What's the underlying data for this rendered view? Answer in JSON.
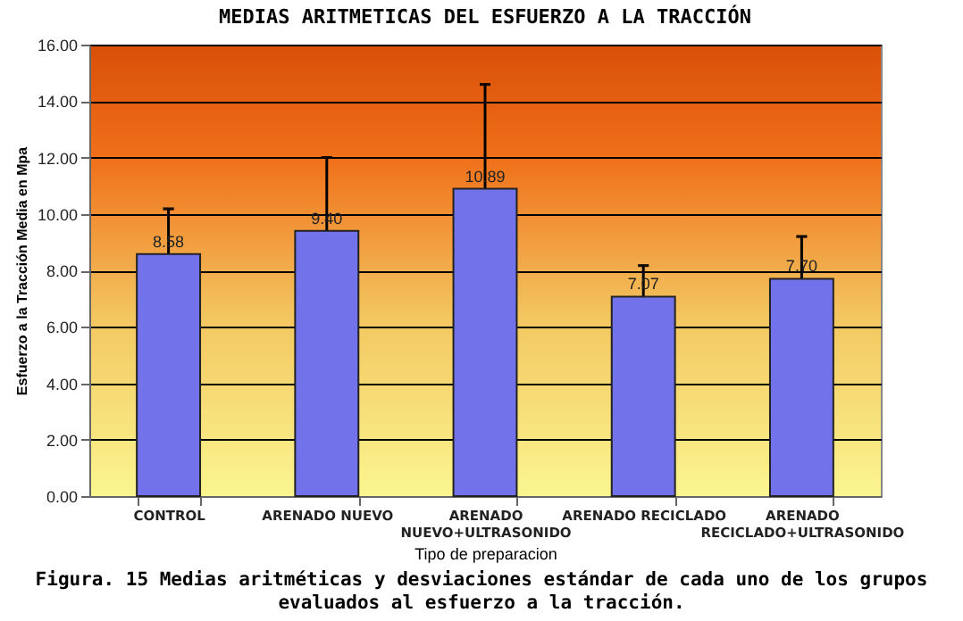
{
  "chart_data": {
    "type": "bar",
    "title": "MEDIAS ARITMETICAS DEL ESFUERZO A LA TRACCIÓN",
    "xlabel": "Tipo de preparacion",
    "ylabel": "Esfuerzo a la Tracción Media en Mpa",
    "categories": [
      "CONTROL",
      "ARENADO NUEVO",
      "ARENADO NUEVO+ULTRASONIDO",
      "ARENADO RECICLADO",
      "ARENADO RECICLADO+ULTRASONIDO"
    ],
    "values": [
      8.58,
      9.4,
      10.89,
      7.07,
      7.7
    ],
    "errors": [
      1.6,
      2.6,
      3.7,
      1.1,
      1.5
    ],
    "color": "#7272ea",
    "value_labels": [
      "8.58",
      "9.40",
      "10.89",
      "7.07",
      "7.70"
    ],
    "ylim": [
      0,
      16
    ],
    "yticks": [
      {
        "value": 0,
        "label": "0.00"
      },
      {
        "value": 2,
        "label": "2.00"
      },
      {
        "value": 4,
        "label": "4.00"
      },
      {
        "value": 6,
        "label": "6.00"
      },
      {
        "value": 8,
        "label": "8.00"
      },
      {
        "value": 10,
        "label": "10.00"
      },
      {
        "value": 12,
        "label": "12.00"
      },
      {
        "value": 14,
        "label": "14.00"
      },
      {
        "value": 16,
        "label": "16.00"
      }
    ],
    "grid": "y",
    "annotations": [
      "Figura. 15 Medias aritméticas y desviaciones estándar de cada uno de los grupos evaluados al esfuerzo a la tracción."
    ]
  }
}
